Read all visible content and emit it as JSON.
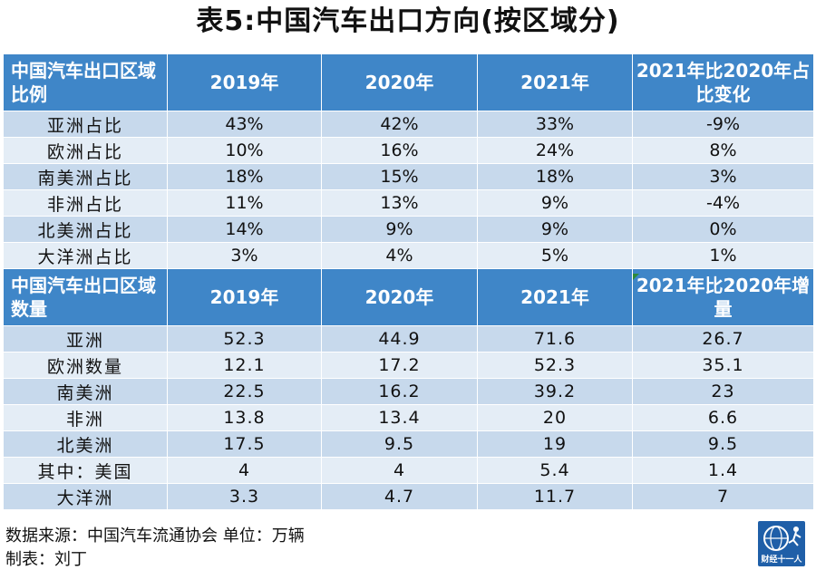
{
  "title": "表5:中国汽车出口方向(按区域分)",
  "share_table": {
    "headers": [
      "中国汽车出口区域比例",
      "2019年",
      "2020年",
      "2021年",
      "2021年比2020年占比变化"
    ],
    "rows": [
      [
        "亚洲占比",
        "43%",
        "42%",
        "33%",
        "-9%"
      ],
      [
        "欧洲占比",
        "10%",
        "16%",
        "24%",
        "8%"
      ],
      [
        "南美洲占比",
        "18%",
        "15%",
        "18%",
        "3%"
      ],
      [
        "非洲占比",
        "11%",
        "13%",
        "9%",
        "-4%"
      ],
      [
        "北美洲占比",
        "14%",
        "9%",
        "9%",
        "0%"
      ],
      [
        "大洋洲占比",
        "3%",
        "4%",
        "5%",
        "1%"
      ]
    ]
  },
  "volume_table": {
    "headers": [
      "中国汽车出口区域数量",
      "2019年",
      "2020年",
      "2021年",
      "2021年比2020年增量"
    ],
    "rows": [
      [
        "亚洲",
        "52.3",
        "44.9",
        "71.6",
        "26.7"
      ],
      [
        "欧洲数量",
        "12.1",
        "17.2",
        "52.3",
        "35.1"
      ],
      [
        "南美洲",
        "22.5",
        "16.2",
        "39.2",
        "23"
      ],
      [
        "非洲",
        "13.8",
        "13.4",
        "20",
        "6.6"
      ],
      [
        "北美洲",
        "17.5",
        "9.5",
        "19",
        "9.5"
      ],
      [
        "其中：美国",
        "4",
        "4",
        "5.4",
        "1.4"
      ],
      [
        "大洋洲",
        "3.3",
        "4.7",
        "11.7",
        "7"
      ]
    ]
  },
  "footer": {
    "source": "数据来源：中国汽车流通协会  单位：万辆",
    "author": "制表：刘丁"
  },
  "logo": {
    "text": "财经十一人",
    "icon": "globe-runner-icon",
    "color": "#1f5fa8"
  },
  "colors": {
    "header": "#3f86c8",
    "row_dark": "#c7d9ec",
    "row_light": "#e4edf6"
  }
}
